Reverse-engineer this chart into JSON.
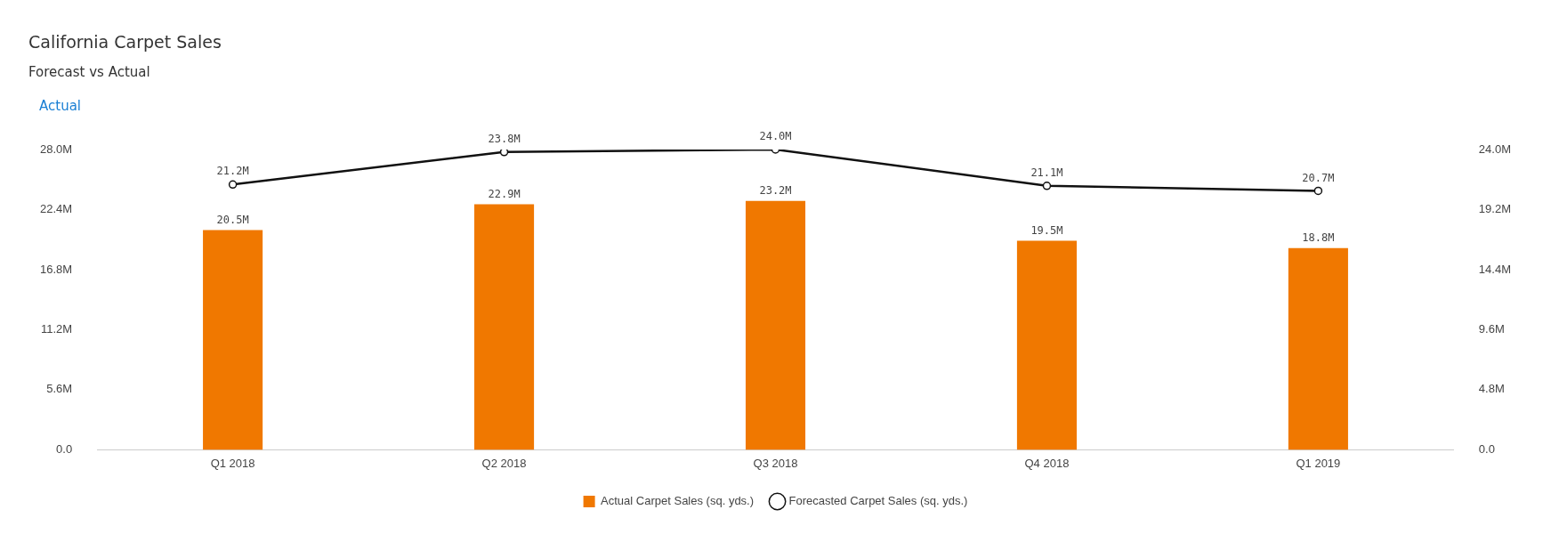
{
  "chart_data": {
    "type": "bar",
    "title": "California Carpet Sales",
    "subtitle": "Forecast vs Actual",
    "annotations": [
      "Actual"
    ],
    "categories": [
      "Q1 2018",
      "Q2 2018",
      "Q3 2018",
      "Q4 2018",
      "Q1 2019"
    ],
    "series": [
      {
        "name": "Actual Carpet Sales (sq. yds.)",
        "color": "#f07800",
        "values": [
          20.5,
          22.9,
          23.2,
          19.5,
          18.8
        ],
        "value_labels": [
          "20.5M",
          "22.9M",
          "23.2M",
          "19.5M",
          "18.8M"
        ]
      },
      {
        "name": "Forecasted Carpet Sales (sq. yds.)",
        "type": "line",
        "axis": "y2",
        "color": "#111111",
        "marker": "circle",
        "values": [
          21.2,
          23.8,
          24.0,
          21.1,
          20.7
        ],
        "value_labels": [
          "21.2M",
          "23.8M",
          "24.0M",
          "21.1M",
          "20.7M"
        ]
      }
    ],
    "ylim": [
      0,
      28
    ],
    "yticks": [
      {
        "value": 0,
        "label": "0.0"
      },
      {
        "value": 5.6,
        "label": "5.6M"
      },
      {
        "value": 11.2,
        "label": "11.2M"
      },
      {
        "value": 16.8,
        "label": "16.8M"
      },
      {
        "value": 22.4,
        "label": "22.4M"
      },
      {
        "value": 28,
        "label": "28.0M"
      }
    ],
    "y2lim": [
      0,
      24
    ],
    "y2ticks": [
      {
        "value": 0,
        "label": "0.0"
      },
      {
        "value": 4.8,
        "label": "4.8M"
      },
      {
        "value": 9.6,
        "label": "9.6M"
      },
      {
        "value": 14.4,
        "label": "14.4M"
      },
      {
        "value": 19.2,
        "label": "19.2M"
      },
      {
        "value": 24,
        "label": "24.0M"
      }
    ],
    "grid": false,
    "legend": "bottom"
  }
}
